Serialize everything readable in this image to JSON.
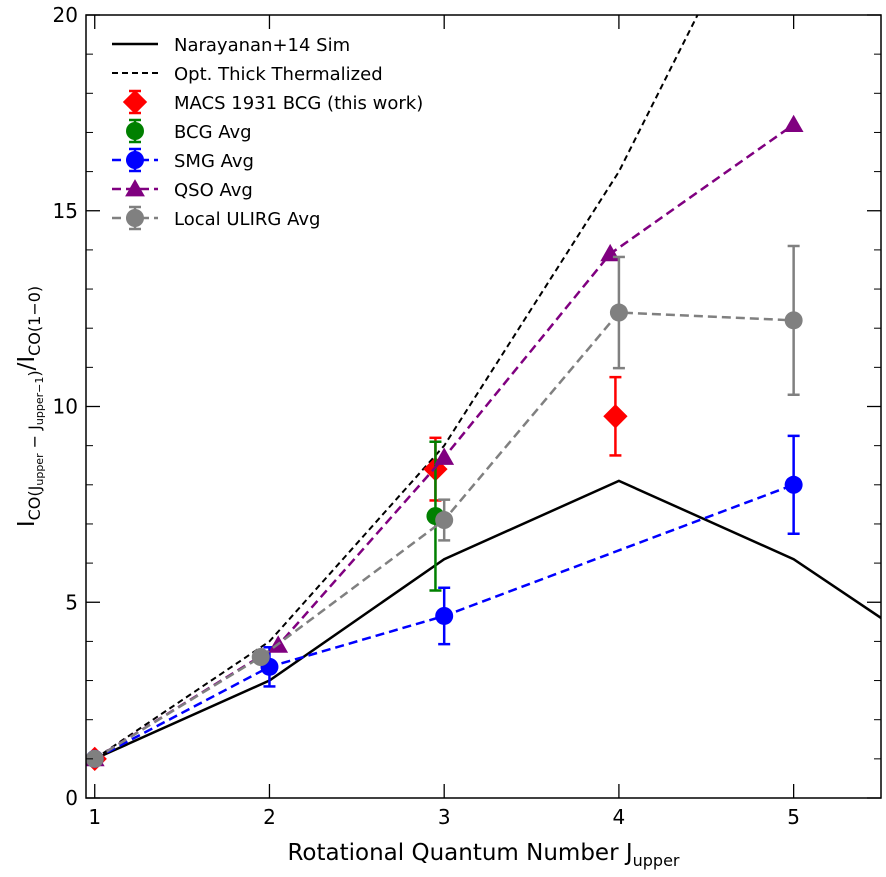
{
  "chart_data": {
    "type": "line",
    "title": "",
    "xlabel": {
      "main": "Rotational Quantum Number J",
      "sub": "upper"
    },
    "ylabel": {
      "num_base": "I",
      "num_sub": "CO(J",
      "num_sub2": "upper",
      "num_mid": " − J",
      "num_sub3": "upper−1",
      "num_close": ")",
      "slash": "/",
      "den_base": "I",
      "den_sub": "CO(1−0)"
    },
    "xlim": [
      0.95,
      5.5
    ],
    "ylim": [
      0,
      20
    ],
    "xticks": [
      1,
      2,
      3,
      4,
      5
    ],
    "xtick_labels": [
      "1",
      "2",
      "3",
      "4",
      "5"
    ],
    "yticks": [
      0,
      5,
      10,
      15,
      20
    ],
    "ytick_labels": [
      "0",
      "5",
      "10",
      "15",
      "20"
    ],
    "yminor_step": 1,
    "grid": false,
    "legend_position": "top-left",
    "series": [
      {
        "name": "Narayanan+14 Sim",
        "style": "solid",
        "marker": "none",
        "color": "#000000",
        "x": [
          1,
          2,
          3,
          4,
          5,
          5.5
        ],
        "y": [
          1.0,
          3.0,
          6.1,
          8.1,
          6.1,
          4.6
        ]
      },
      {
        "name": "Opt. Thick Thermalized",
        "style": "dashed-thin",
        "marker": "none",
        "color": "#000000",
        "x": [
          1,
          2,
          3,
          4,
          4.45
        ],
        "y": [
          1,
          4,
          9,
          16,
          20
        ]
      },
      {
        "name": "MACS 1931 BCG (this work)",
        "style": "none",
        "marker": "diamond",
        "color": "#ff0000",
        "x": [
          1,
          2.95,
          3.98
        ],
        "y": [
          1.0,
          8.4,
          9.75
        ],
        "err": [
          0,
          0.8,
          1.0
        ]
      },
      {
        "name": "BCG Avg",
        "style": "none",
        "marker": "circle",
        "color": "#008000",
        "x": [
          2.95
        ],
        "y": [
          7.2
        ],
        "err": [
          1.9
        ]
      },
      {
        "name": "SMG Avg",
        "style": "dashed",
        "marker": "circle",
        "color": "#0000ff",
        "x": [
          1,
          2,
          3,
          5
        ],
        "y": [
          1.0,
          3.35,
          4.65,
          8.0
        ],
        "err": [
          0,
          0.5,
          0.72,
          1.25
        ]
      },
      {
        "name": "QSO Avg",
        "style": "dashed",
        "marker": "triangle",
        "color": "#800080",
        "x": [
          1,
          2.05,
          3,
          3.95,
          5
        ],
        "y": [
          1.0,
          3.9,
          8.7,
          13.9,
          17.2
        ],
        "err": [
          0,
          0,
          0,
          0,
          0
        ]
      },
      {
        "name": "Local ULIRG Avg",
        "style": "dashed",
        "marker": "circle",
        "color": "#808080",
        "x": [
          1,
          1.95,
          3,
          4,
          5
        ],
        "y": [
          1.0,
          3.6,
          7.1,
          12.4,
          12.2
        ],
        "err": [
          0,
          0,
          0.52,
          1.42,
          1.9
        ]
      }
    ]
  }
}
